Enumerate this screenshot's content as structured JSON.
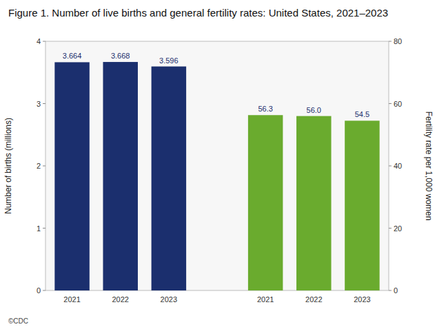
{
  "chart_data": {
    "type": "bar",
    "title": "Figure 1. Number of live births and general fertility rates: United States, 2021–2023",
    "categories": [
      "2021",
      "2022",
      "2023",
      "2021",
      "2022",
      "2023"
    ],
    "series": [
      {
        "color": "#1B2F6E",
        "values": [
          3.664,
          3.668,
          3.596,
          null,
          null,
          null
        ]
      },
      {
        "color": "#6AAB2E",
        "axis": "y2",
        "values": [
          null,
          null,
          null,
          56.3,
          56.0,
          54.5
        ],
        "value_labels": [
          null,
          null,
          null,
          "56.3",
          "56.0",
          "54.5"
        ]
      }
    ],
    "y_label": "Number of births (millions)",
    "y2_label": "Fertility rate per 1,000 women",
    "ylim": [
      0,
      4
    ],
    "yticks": [
      0,
      1,
      2,
      3,
      4
    ],
    "y2lim": [
      0,
      80
    ],
    "y2ticks": [
      0,
      20,
      40,
      60,
      80
    ],
    "grid": false,
    "data_labels": true,
    "annotations": [
      "©CDC"
    ]
  }
}
